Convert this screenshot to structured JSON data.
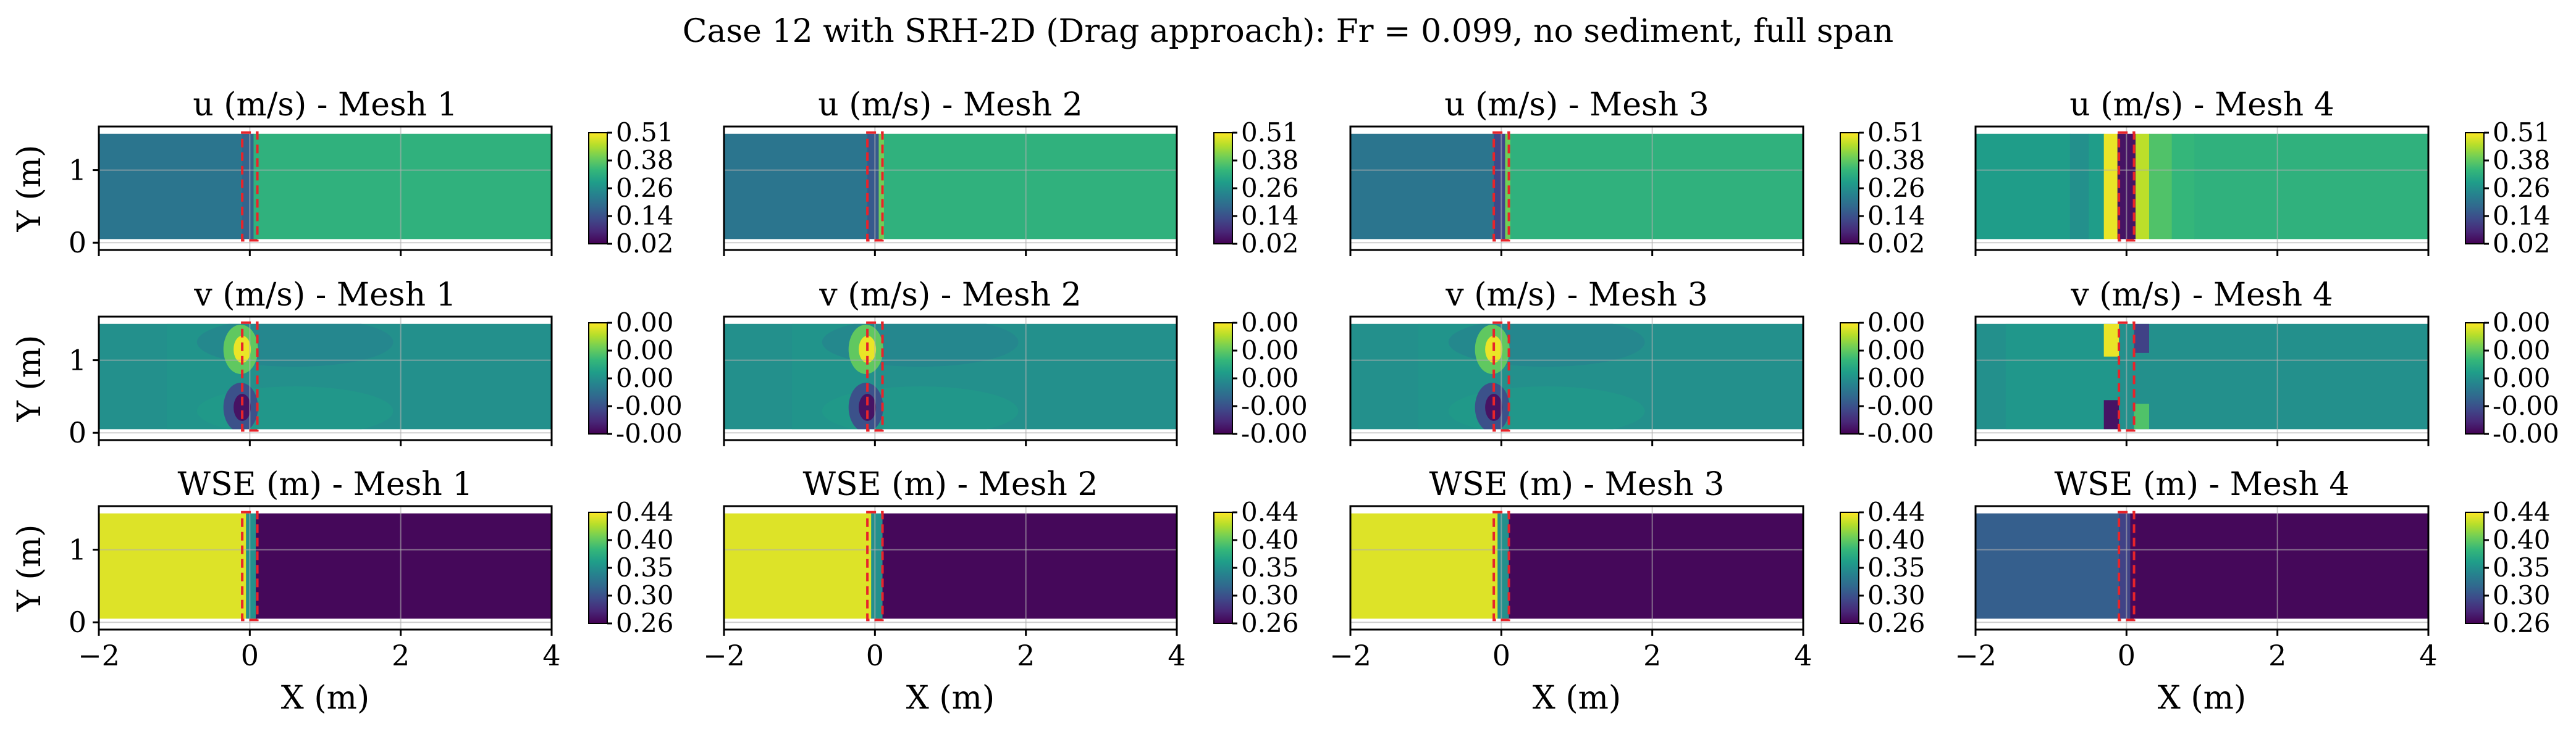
{
  "figure_title": "Case 12 with SRH-2D (Drag approach): Fr = 0.099, no sediment, full span",
  "colors": {
    "viridis": [
      "#440154",
      "#482878",
      "#3e4989",
      "#31688e",
      "#26828e",
      "#1f9e89",
      "#35b779",
      "#6ece58",
      "#b5de2b",
      "#fde725"
    ],
    "pier_box": "#e8242a"
  },
  "chart_data": {
    "type": "heatmap",
    "x_label": "X (m)",
    "y_label": "Y (m)",
    "xlim": [
      -2,
      4
    ],
    "ylim": [
      -0.1,
      1.6
    ],
    "x_ticks": [
      "−2",
      "0",
      "2",
      "4"
    ],
    "y_ticks": [
      "0",
      "1"
    ],
    "grid": true,
    "channel_y": [
      0.05,
      1.5
    ],
    "pier_box_x": [
      -0.1,
      0.1
    ],
    "rows": [
      {
        "variable": "u (m/s)",
        "colorbar_ticks": [
          "0.02",
          "0.14",
          "0.26",
          "0.38",
          "0.51"
        ],
        "panels": [
          {
            "title": "u (m/s) - Mesh 1",
            "mesh": "Mesh 1",
            "segments": [
              {
                "x": [
                  -2,
                  -0.1
                ],
                "level": 0.39
              },
              {
                "x": [
                  -0.1,
                  0.05
                ],
                "level": 0.32
              },
              {
                "x": [
                  0.05,
                  4
                ],
                "level": 0.64
              }
            ]
          },
          {
            "title": "u (m/s) - Mesh 2",
            "mesh": "Mesh 2",
            "segments": [
              {
                "x": [
                  -2,
                  -0.1
                ],
                "level": 0.39
              },
              {
                "x": [
                  -0.1,
                  0.05
                ],
                "level": 0.28
              },
              {
                "x": [
                  0.05,
                  0.12
                ],
                "level": 0.78
              },
              {
                "x": [
                  0.12,
                  4
                ],
                "level": 0.64
              }
            ]
          },
          {
            "title": "u (m/s) - Mesh 3",
            "mesh": "Mesh 3",
            "segments": [
              {
                "x": [
                  -2,
                  -0.1
                ],
                "level": 0.39
              },
              {
                "x": [
                  -0.1,
                  0.05
                ],
                "level": 0.22
              },
              {
                "x": [
                  0.05,
                  0.12
                ],
                "level": 0.78
              },
              {
                "x": [
                  0.12,
                  4
                ],
                "level": 0.64
              }
            ]
          },
          {
            "title": "u (m/s) - Mesh 4",
            "mesh": "Mesh 4",
            "segments": [
              {
                "x": [
                  -2,
                  -0.75
                ],
                "level": 0.55
              },
              {
                "x": [
                  -0.75,
                  -0.5
                ],
                "level": 0.5
              },
              {
                "x": [
                  -0.5,
                  -0.3
                ],
                "level": 0.55
              },
              {
                "x": [
                  -0.3,
                  -0.12
                ],
                "level": 0.97
              },
              {
                "x": [
                  -0.12,
                  0.12
                ],
                "level": 0.05
              },
              {
                "x": [
                  0.12,
                  0.3
                ],
                "level": 0.9
              },
              {
                "x": [
                  0.3,
                  0.6
                ],
                "level": 0.72
              },
              {
                "x": [
                  0.6,
                  0.9
                ],
                "level": 0.66
              },
              {
                "x": [
                  0.9,
                  4
                ],
                "level": 0.64
              }
            ]
          }
        ]
      },
      {
        "variable": "v (m/s)",
        "colorbar_ticks": [
          "-0.00",
          "-0.00",
          "0.00",
          "0.00",
          "0.00"
        ],
        "panels": [
          {
            "title": "v (m/s) - Mesh 1",
            "mesh": "Mesh 1",
            "segments": [
              {
                "x": [
                  -2,
                  4
                ],
                "level": 0.5
              }
            ]
          },
          {
            "title": "v (m/s) - Mesh 2",
            "mesh": "Mesh 2",
            "segments": [
              {
                "x": [
                  -2,
                  4
                ],
                "level": 0.5
              }
            ]
          },
          {
            "title": "v (m/s) - Mesh 3",
            "mesh": "Mesh 3",
            "segments": [
              {
                "x": [
                  -2,
                  4
                ],
                "level": 0.5
              }
            ]
          },
          {
            "title": "v (m/s) - Mesh 4",
            "mesh": "Mesh 4",
            "segments": [
              {
                "x": [
                  -2,
                  4
                ],
                "level": 0.5
              }
            ]
          }
        ]
      },
      {
        "variable": "WSE (m)",
        "colorbar_ticks": [
          "0.26",
          "0.30",
          "0.35",
          "0.40",
          "0.44"
        ],
        "panels": [
          {
            "title": "WSE (m) - Mesh 1",
            "mesh": "Mesh 1",
            "segments": [
              {
                "x": [
                  -2,
                  -0.05
                ],
                "level": 0.95
              },
              {
                "x": [
                  -0.05,
                  0.08
                ],
                "level": 0.5
              },
              {
                "x": [
                  0.08,
                  4
                ],
                "level": 0.02
              }
            ]
          },
          {
            "title": "WSE (m) - Mesh 2",
            "mesh": "Mesh 2",
            "segments": [
              {
                "x": [
                  -2,
                  -0.05
                ],
                "level": 0.95
              },
              {
                "x": [
                  -0.05,
                  0.1
                ],
                "level": 0.5
              },
              {
                "x": [
                  0.1,
                  4
                ],
                "level": 0.02
              }
            ]
          },
          {
            "title": "WSE (m) - Mesh 3",
            "mesh": "Mesh 3",
            "segments": [
              {
                "x": [
                  -2,
                  -0.05
                ],
                "level": 0.95
              },
              {
                "x": [
                  -0.05,
                  0.1
                ],
                "level": 0.5
              },
              {
                "x": [
                  0.1,
                  4
                ],
                "level": 0.02
              }
            ]
          },
          {
            "title": "WSE (m) - Mesh 4",
            "mesh": "Mesh 4",
            "segments": [
              {
                "x": [
                  -2,
                  -0.1
                ],
                "level": 0.3
              },
              {
                "x": [
                  -0.1,
                  0.05
                ],
                "level": 0.2
              },
              {
                "x": [
                  0.05,
                  4
                ],
                "level": 0.02
              }
            ]
          }
        ]
      }
    ]
  }
}
